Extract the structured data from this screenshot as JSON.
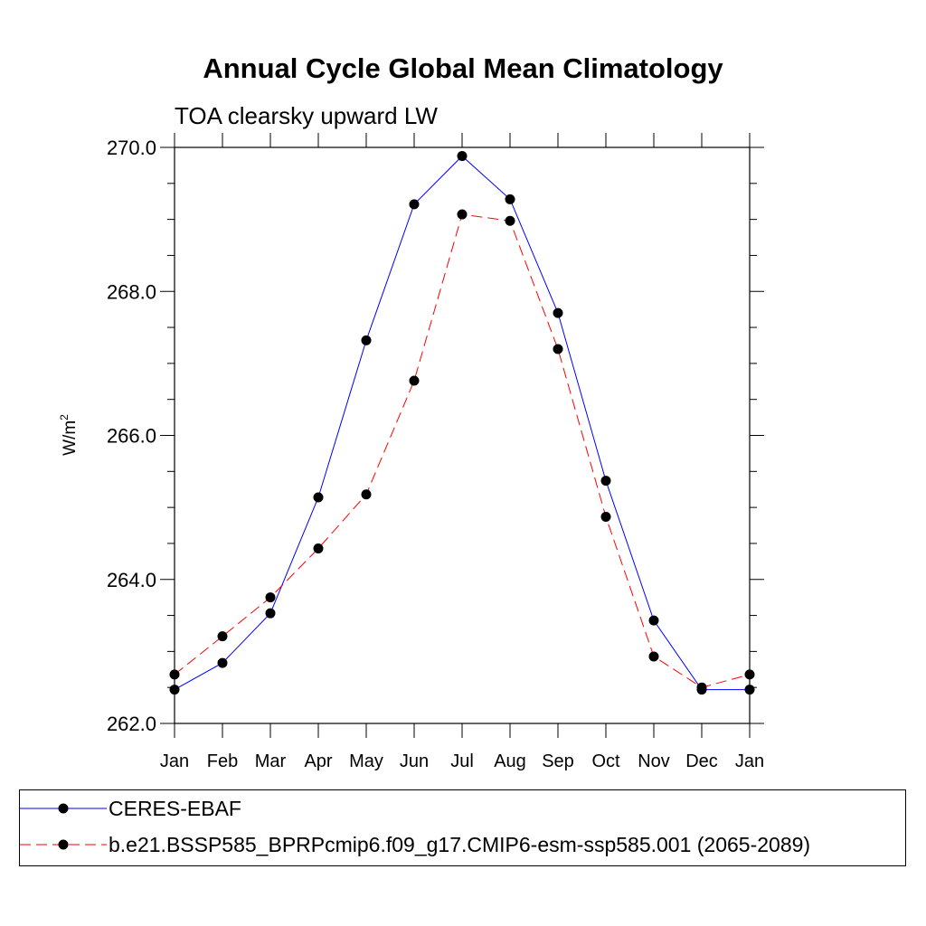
{
  "chart_data": {
    "type": "line",
    "title": "Annual Cycle Global Mean Climatology",
    "subtitle": "TOA clearsky upward LW",
    "ylabel_base": "W/m",
    "ylabel_sup": "2",
    "xlabel": "",
    "categories": [
      "Jan",
      "Feb",
      "Mar",
      "Apr",
      "May",
      "Jun",
      "Jul",
      "Aug",
      "Sep",
      "Oct",
      "Nov",
      "Dec",
      "Jan"
    ],
    "ylim": [
      262.0,
      270.0
    ],
    "yticks": [
      262.0,
      264.0,
      266.0,
      268.0,
      270.0
    ],
    "ytick_labels": [
      "262.0",
      "264.0",
      "266.0",
      "268.0",
      "270.0"
    ],
    "series": [
      {
        "name": "CERES-EBAF",
        "color": "#0000ff",
        "dash": "solid",
        "values": [
          262.47,
          262.84,
          263.53,
          265.14,
          267.32,
          269.21,
          269.88,
          269.28,
          267.7,
          265.37,
          263.43,
          262.47,
          262.47
        ]
      },
      {
        "name": "b.e21.BSSP585_BPRPcmip6.f09_g17.CMIP6-esm-ssp585.001 (2065-2089)",
        "color": "#ff0000",
        "dash": "dashed",
        "values": [
          262.68,
          263.21,
          263.75,
          264.43,
          265.18,
          266.76,
          269.07,
          268.98,
          267.2,
          264.87,
          262.93,
          262.5,
          262.68
        ]
      }
    ]
  }
}
